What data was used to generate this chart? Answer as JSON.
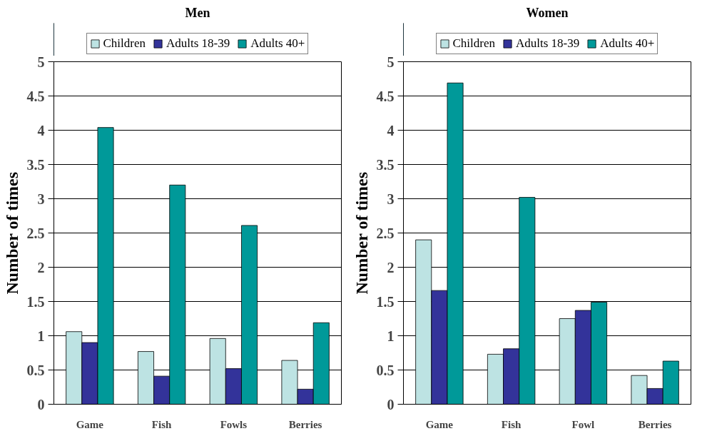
{
  "chart_data": [
    {
      "type": "bar",
      "title": "Men",
      "ylabel": "Number of times",
      "categories": [
        "Game",
        "Fish",
        "Fowls",
        "Berries"
      ],
      "series": [
        {
          "name": "Children",
          "color": "#bde3e3",
          "values": [
            1.06,
            0.77,
            0.96,
            0.64
          ]
        },
        {
          "name": "Adults 18-39",
          "color": "#33339a",
          "values": [
            0.9,
            0.41,
            0.52,
            0.22
          ]
        },
        {
          "name": "Adults 40+",
          "color": "#009999",
          "values": [
            4.04,
            3.2,
            2.61,
            1.19
          ]
        }
      ],
      "ylim": [
        0,
        5
      ],
      "yticks": [
        0,
        0.5,
        1,
        1.5,
        2,
        2.5,
        3,
        3.5,
        4,
        4.5,
        5
      ],
      "grid": "y",
      "legend": "top"
    },
    {
      "type": "bar",
      "title": "Women",
      "ylabel": "Number of times",
      "categories": [
        "Game",
        "Fish",
        "Fowl",
        "Berries"
      ],
      "series": [
        {
          "name": "Children",
          "color": "#bde3e3",
          "values": [
            2.4,
            0.73,
            1.25,
            0.42
          ]
        },
        {
          "name": "Adults 18-39",
          "color": "#33339a",
          "values": [
            1.66,
            0.81,
            1.37,
            0.23
          ]
        },
        {
          "name": "Adults 40+",
          "color": "#009999",
          "values": [
            4.69,
            3.02,
            1.49,
            0.63
          ]
        }
      ],
      "ylim": [
        0,
        5
      ],
      "yticks": [
        0,
        0.5,
        1,
        1.5,
        2,
        2.5,
        3,
        3.5,
        4,
        4.5,
        5
      ],
      "grid": "y",
      "legend": "top"
    }
  ]
}
